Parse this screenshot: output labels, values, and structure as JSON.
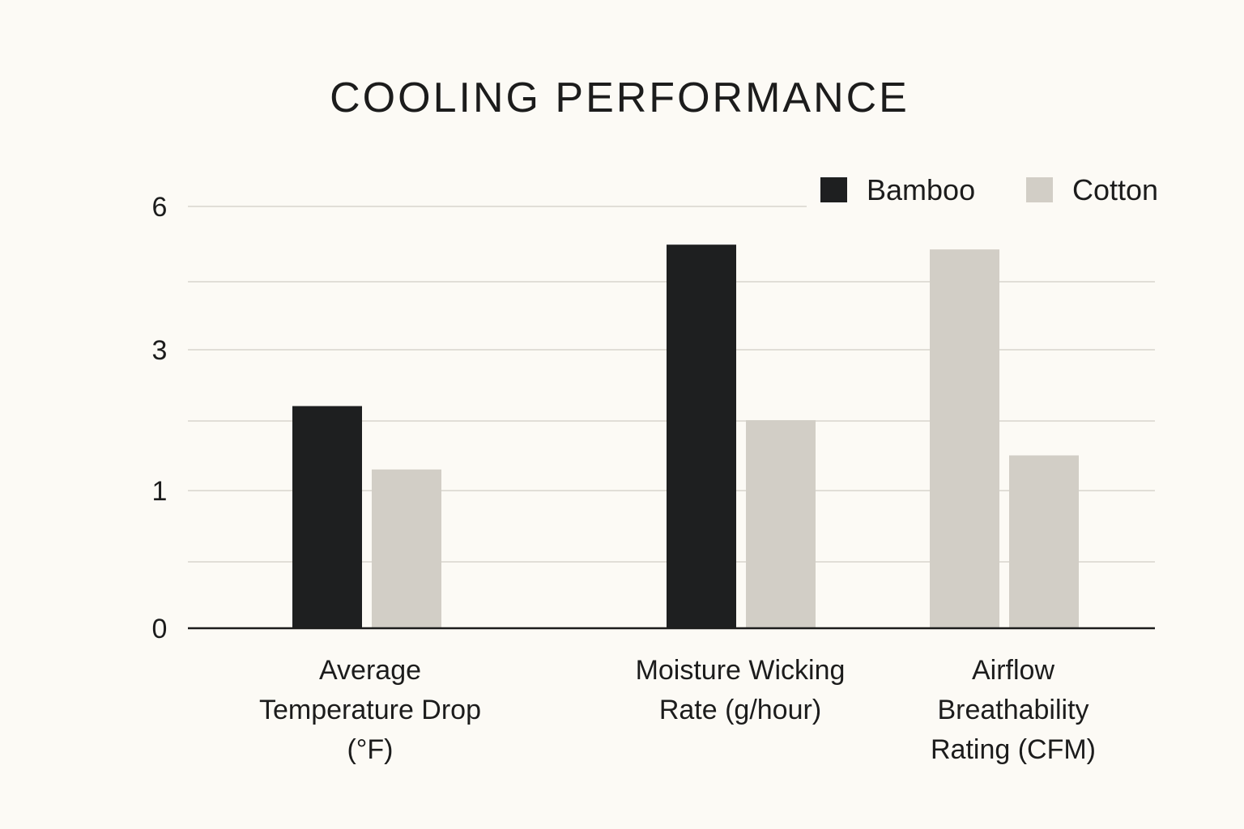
{
  "chart_data": {
    "type": "bar",
    "title": "COOLING PERFORMANCE",
    "xlabel": "",
    "ylabel": "",
    "categories": [
      [
        "Average",
        "Temperature Drop",
        "(°F)"
      ],
      [
        "Moisture Wicking",
        "Rate (g/hour)"
      ],
      [
        "Airflow",
        "Breathability",
        "Rating (CFM)"
      ]
    ],
    "series": [
      {
        "name": "Bamboo",
        "color": "#1e1f20",
        "values": [
          2.2,
          5.2,
          5.1
        ]
      },
      {
        "name": "Cotton",
        "color": "#d2cec6",
        "values": [
          1.3,
          2.0,
          1.5
        ]
      }
    ],
    "series_color_override": [
      {
        "series": 0,
        "category": 2,
        "color": "#d2cec6"
      }
    ],
    "y_tick_labels": [
      "6",
      "3",
      "1",
      "0"
    ],
    "ylim": [
      0,
      6
    ],
    "grid": true,
    "legend": "top-right"
  }
}
